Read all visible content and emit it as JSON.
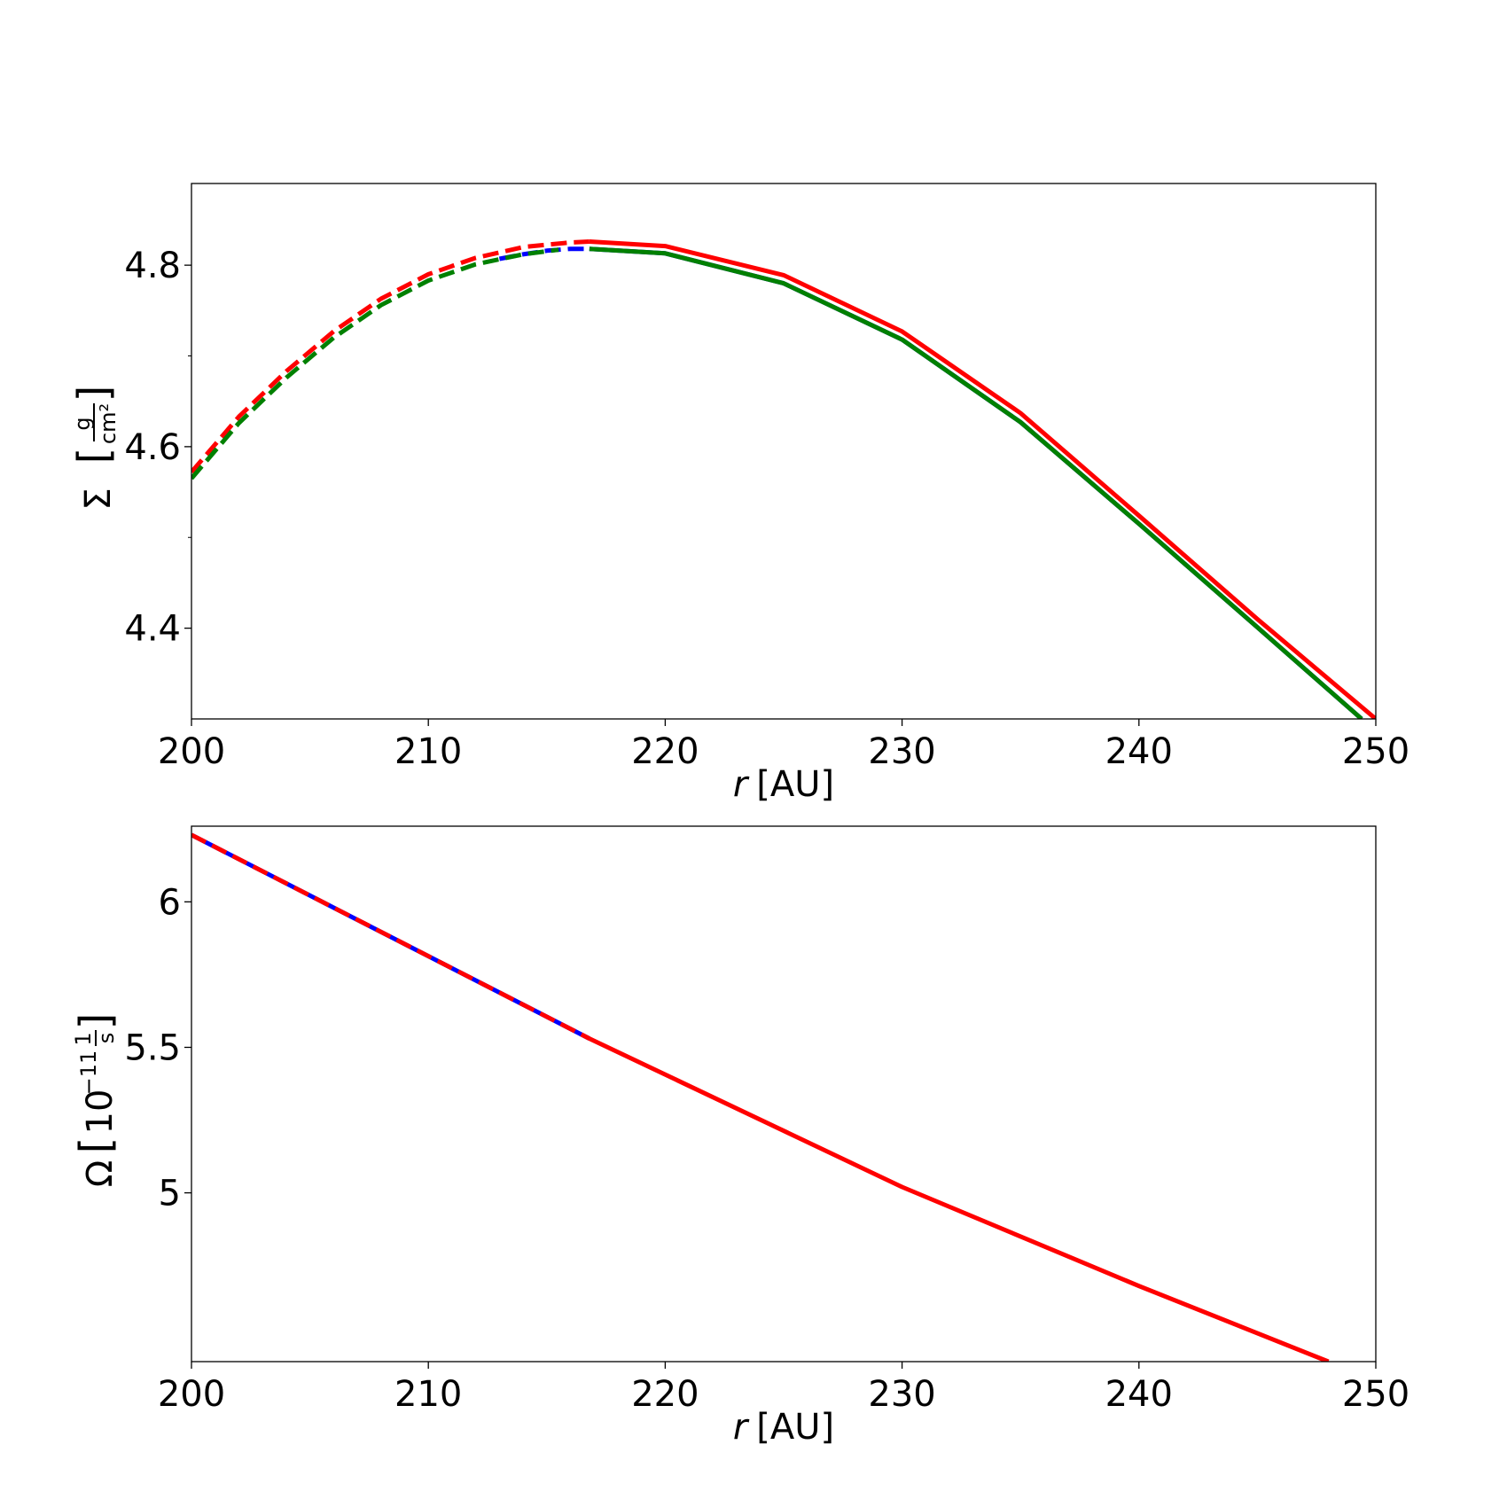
{
  "chart_data": [
    {
      "type": "line",
      "title": "",
      "xlabel_var": "r",
      "xlabel_unit": "[AU]",
      "ylabel_symbol": "Σ",
      "ylabel_num": "g",
      "ylabel_den": "cm²",
      "xlim": [
        200,
        250
      ],
      "ylim": [
        4.3,
        4.89
      ],
      "xticks": [
        200,
        210,
        220,
        230,
        240,
        250
      ],
      "xtick_labels": [
        "200",
        "210",
        "220",
        "230",
        "240",
        "250"
      ],
      "yticks": [
        4.4,
        4.6,
        4.8
      ],
      "ytick_labels": [
        "4.4",
        "4.6",
        "4.8"
      ],
      "yminor": [
        4.5,
        4.7
      ],
      "grid": false,
      "series": [
        {
          "color": "#ff0000",
          "segments": [
            {
              "style": "dashed",
              "x": [
                200,
                202,
                204,
                206,
                208,
                210,
                212,
                214,
                216,
                216.8
              ],
              "y": [
                4.572,
                4.633,
                4.683,
                4.727,
                4.763,
                4.79,
                4.808,
                4.82,
                4.825,
                4.826
              ]
            },
            {
              "style": "solid",
              "x": [
                216.8,
                220,
                225,
                230,
                235,
                240,
                245,
                250
              ],
              "y": [
                4.826,
                4.821,
                4.789,
                4.727,
                4.637,
                4.524,
                4.41,
                4.3
              ]
            }
          ]
        },
        {
          "color": "#0000ff",
          "segments": [
            {
              "style": "dashed",
              "x": [
                213,
                214,
                215,
                216,
                216.8
              ],
              "y": [
                4.807,
                4.812,
                4.816,
                4.818,
                4.818
              ]
            },
            {
              "style": "solid",
              "x": [
                216.8,
                220,
                225,
                230,
                235,
                240,
                245,
                249.4
              ],
              "y": [
                4.818,
                4.813,
                4.78,
                4.718,
                4.627,
                4.515,
                4.401,
                4.3
              ]
            }
          ]
        },
        {
          "color": "#008000",
          "segments": [
            {
              "style": "dashed",
              "x": [
                200,
                202,
                204,
                206,
                208,
                210,
                212,
                214,
                215.5
              ],
              "y": [
                4.565,
                4.626,
                4.676,
                4.72,
                4.756,
                4.783,
                4.801,
                4.812,
                4.817
              ]
            },
            {
              "style": "solid",
              "x": [
                216.8,
                220,
                225,
                230,
                235,
                240,
                245,
                249.4
              ],
              "y": [
                4.818,
                4.813,
                4.78,
                4.718,
                4.627,
                4.515,
                4.401,
                4.3
              ]
            }
          ]
        }
      ]
    },
    {
      "type": "line",
      "title": "",
      "xlabel_var": "r",
      "xlabel_unit": "[AU]",
      "ylabel_symbol": "Ω",
      "ylabel_main": "10",
      "ylabel_exp": "−11",
      "ylabel_num": "1",
      "ylabel_den": "s",
      "xlim": [
        200,
        250
      ],
      "ylim": [
        4.42,
        6.26
      ],
      "xticks": [
        200,
        210,
        220,
        230,
        240,
        250
      ],
      "xtick_labels": [
        "200",
        "210",
        "220",
        "230",
        "240",
        "250"
      ],
      "yticks": [
        5.0,
        5.5,
        6.0
      ],
      "ytick_labels": [
        "5",
        "5.5",
        "6"
      ],
      "grid": false,
      "series": [
        {
          "color": "#0000ff",
          "segments": [
            {
              "style": "solid",
              "x": [
                200,
                216.8
              ],
              "y": [
                6.23,
                5.53
              ]
            }
          ]
        },
        {
          "color": "#ff0000",
          "segments": [
            {
              "style": "dashed",
              "x": [
                200,
                216.8
              ],
              "y": [
                6.23,
                5.53
              ]
            },
            {
              "style": "solid",
              "x": [
                216.8,
                230,
                240,
                248
              ],
              "y": [
                5.53,
                5.02,
                4.68,
                4.42
              ]
            }
          ]
        }
      ]
    }
  ]
}
